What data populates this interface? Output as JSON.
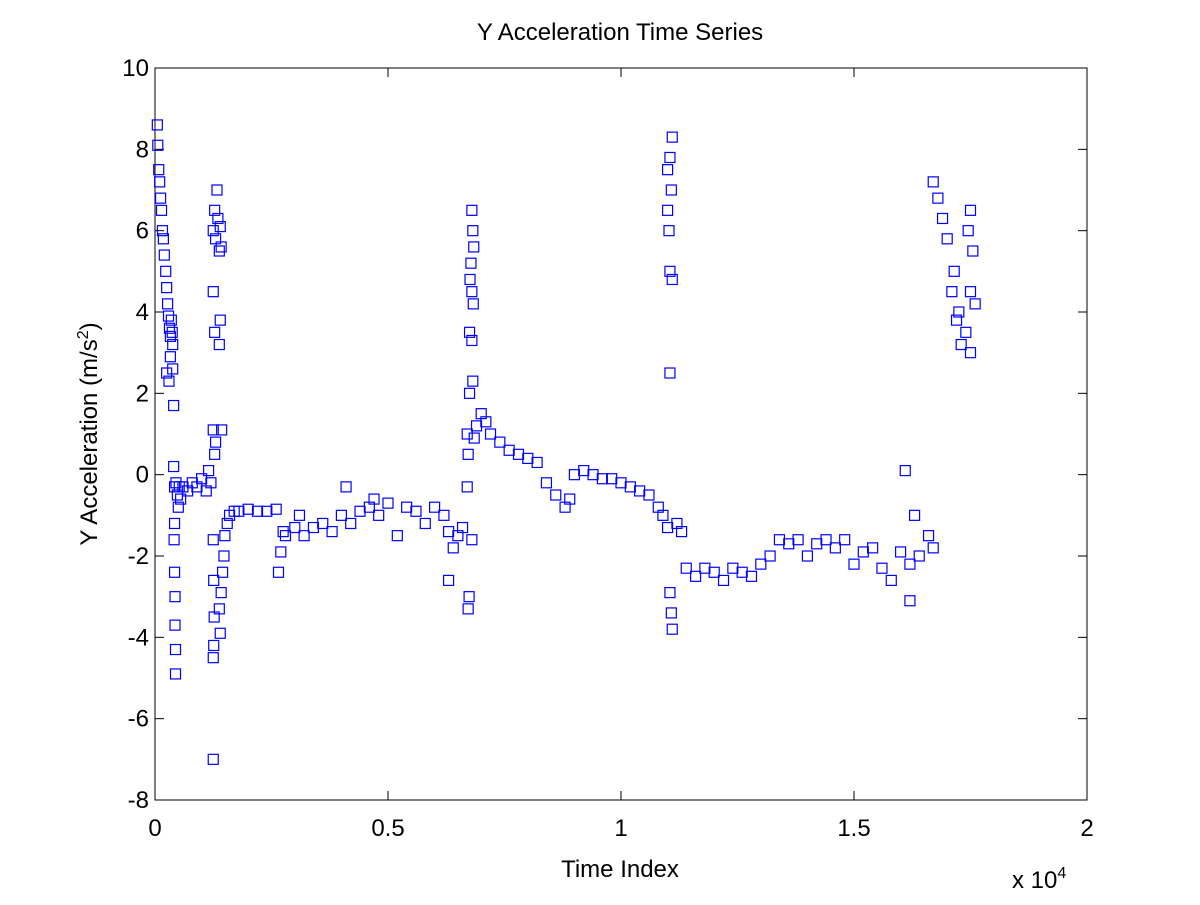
{
  "chart_data": {
    "type": "scatter",
    "title": "Y Acceleration Time Series",
    "xlabel": "Time Index",
    "ylabel": [
      "Y Acceleration (m/s",
      "2",
      ")"
    ],
    "x_multiplier": [
      "x 10",
      "4"
    ],
    "color": "#0000ff",
    "xlim": [
      0,
      20000
    ],
    "xticks": [
      0,
      {
        "value": 5000,
        "label": "0.5"
      },
      {
        "value": 10000,
        "label": "1"
      },
      {
        "value": 15000,
        "label": "1.5"
      },
      {
        "value": 20000,
        "label": "2"
      }
    ],
    "ylim": [
      -8,
      10
    ],
    "yticks": [
      -8,
      -6,
      -4,
      -2,
      0,
      2,
      4,
      6,
      8,
      10
    ],
    "x": [
      50,
      60,
      80,
      100,
      120,
      140,
      160,
      180,
      200,
      230,
      250,
      270,
      290,
      310,
      330,
      350,
      370,
      380,
      250,
      300,
      330,
      380,
      400,
      400,
      420,
      450,
      480,
      500,
      520,
      550,
      600,
      700,
      800,
      900,
      1000,
      1100,
      1200,
      1150,
      420,
      420,
      430,
      430,
      440,
      440,
      410,
      1250,
      1280,
      1300,
      1330,
      1350,
      1380,
      1400,
      1420,
      1250,
      1280,
      1400,
      1380,
      1250,
      1280,
      1300,
      1430,
      1250,
      1260,
      1270,
      1260,
      1250,
      1250,
      1380,
      1400,
      1420,
      1450,
      1480,
      1500,
      1550,
      1600,
      1700,
      1800,
      2000,
      2200,
      2400,
      2600,
      2650,
      2700,
      2750,
      2800,
      3000,
      3100,
      3200,
      3400,
      3600,
      3800,
      4000,
      4100,
      4200,
      4400,
      4600,
      4700,
      4800,
      5000,
      5200,
      5400,
      5600,
      5800,
      6000,
      6200,
      6300,
      6400,
      6500,
      6600,
      6300,
      6800,
      6820,
      6840,
      6780,
      6760,
      6800,
      6830,
      6750,
      6800,
      6820,
      6750,
      6700,
      6720,
      6700,
      6720,
      6740,
      6800,
      6850,
      6900,
      7000,
      7100,
      7200,
      7400,
      7600,
      7800,
      8000,
      8200,
      8400,
      8600,
      8800,
      8900,
      9000,
      9200,
      9400,
      9600,
      9800,
      10000,
      10200,
      10400,
      10600,
      10800,
      10900,
      11000,
      11050,
      11100,
      11080,
      11000,
      11030,
      11050,
      11100,
      11050,
      11000,
      11050,
      11080,
      11100,
      11200,
      11300,
      11400,
      11600,
      11800,
      12000,
      12200,
      12400,
      12600,
      12800,
      13000,
      13200,
      13400,
      13600,
      13800,
      14000,
      14200,
      14400,
      14600,
      14800,
      15000,
      15200,
      15400,
      15600,
      15800,
      16000,
      16100,
      16200,
      16300,
      16200,
      16400,
      16600,
      16700,
      16700,
      16800,
      16900,
      17000,
      17100,
      17200,
      17300,
      17400,
      17500,
      17550,
      17500,
      17450,
      17600,
      17500,
      17250,
      17150
    ],
    "values": [
      8.6,
      8.1,
      7.5,
      7.2,
      6.8,
      6.5,
      6.0,
      5.8,
      5.4,
      5.0,
      4.6,
      4.2,
      3.9,
      3.6,
      3.4,
      3.8,
      3.5,
      3.2,
      2.5,
      2.3,
      2.9,
      2.6,
      1.7,
      0.2,
      -0.3,
      -0.2,
      -0.5,
      -0.8,
      -0.3,
      -0.6,
      -0.3,
      -0.4,
      -0.2,
      -0.3,
      -0.1,
      -0.4,
      -0.2,
      0.1,
      -1.2,
      -2.4,
      -3.0,
      -3.7,
      -4.3,
      -4.9,
      -1.6,
      6.0,
      6.5,
      5.8,
      7.0,
      6.3,
      5.5,
      6.1,
      5.6,
      4.5,
      3.5,
      3.8,
      3.2,
      1.1,
      0.5,
      0.8,
      1.1,
      -1.6,
      -2.6,
      -3.5,
      -4.2,
      -4.5,
      -7.0,
      -3.3,
      -3.9,
      -2.9,
      -2.4,
      -2.0,
      -1.5,
      -1.2,
      -1.0,
      -0.9,
      -0.9,
      -0.85,
      -0.9,
      -0.9,
      -0.85,
      -2.4,
      -1.9,
      -1.4,
      -1.5,
      -1.3,
      -1.0,
      -1.5,
      -1.3,
      -1.2,
      -1.4,
      -1.0,
      -0.3,
      -1.2,
      -0.9,
      -0.8,
      -0.6,
      -1.0,
      -0.7,
      -1.5,
      -0.8,
      -0.9,
      -1.2,
      -0.8,
      -1.0,
      -1.4,
      -1.8,
      -1.5,
      -1.3,
      -2.6,
      6.5,
      6.0,
      5.6,
      5.2,
      4.8,
      4.5,
      4.2,
      3.5,
      3.3,
      2.3,
      2.0,
      1.0,
      0.5,
      -0.3,
      -3.3,
      -3.0,
      -1.6,
      0.9,
      1.2,
      1.5,
      1.3,
      1.0,
      0.8,
      0.6,
      0.5,
      0.4,
      0.3,
      -0.2,
      -0.5,
      -0.8,
      -0.6,
      0.0,
      0.1,
      0.0,
      -0.1,
      -0.1,
      -0.2,
      -0.3,
      -0.4,
      -0.5,
      -0.8,
      -1.0,
      7.5,
      7.8,
      8.3,
      7.0,
      6.5,
      6.0,
      5.0,
      4.8,
      2.5,
      -1.3,
      -2.9,
      -3.4,
      -3.8,
      -1.2,
      -1.4,
      -2.3,
      -2.5,
      -2.3,
      -2.4,
      -2.6,
      -2.3,
      -2.4,
      -2.5,
      -2.2,
      -2.0,
      -1.6,
      -1.7,
      -1.6,
      -2.0,
      -1.7,
      -1.6,
      -1.8,
      -1.6,
      -2.2,
      -1.9,
      -1.8,
      -2.3,
      -2.6,
      -1.9,
      0.1,
      -2.2,
      -1.0,
      -3.1,
      -2.0,
      -1.5,
      -1.8,
      7.2,
      6.8,
      6.3,
      5.8,
      4.5,
      3.8,
      3.2,
      3.5,
      4.5,
      5.5,
      6.5,
      6.0,
      4.2,
      3.0,
      4.0,
      5.0
    ]
  }
}
